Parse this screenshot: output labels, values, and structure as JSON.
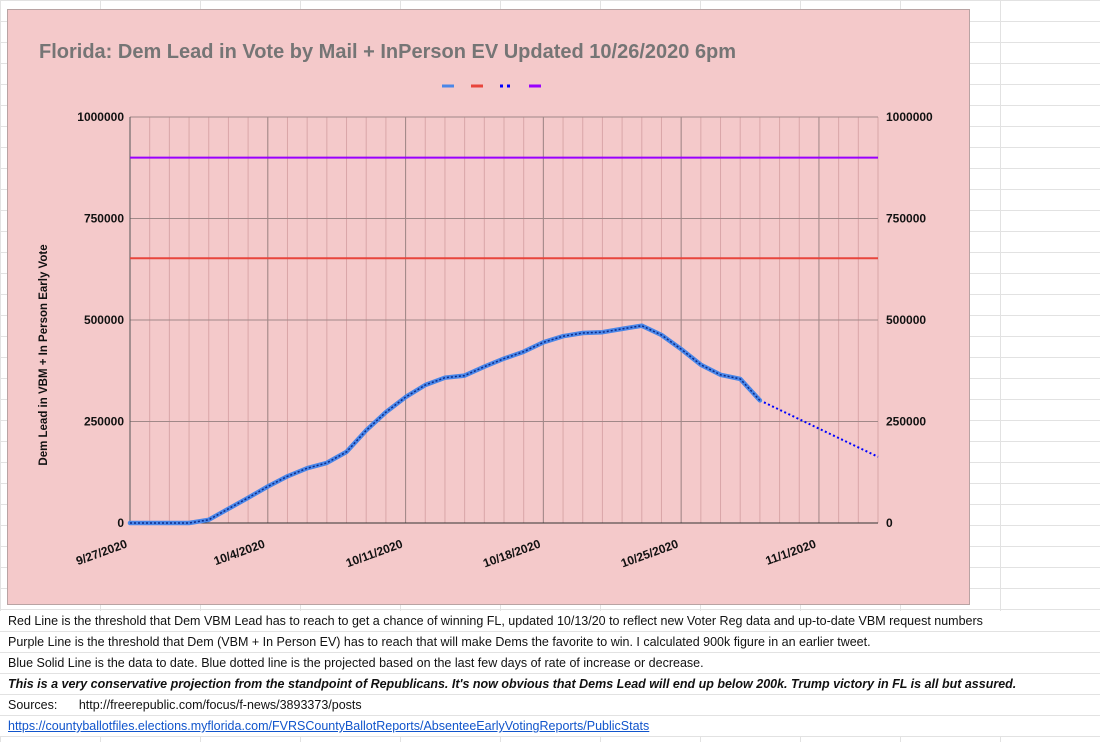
{
  "chart_data": {
    "type": "line",
    "title": "Florida: Dem Lead in Vote by Mail + InPerson EV Updated 10/26/2020 6pm",
    "ylabel": "Dem Lead in VBM + In Person Early Vote",
    "xlabel": "",
    "ylim": [
      0,
      1000000
    ],
    "y_ticks": [
      "1000000",
      "750000",
      "500000",
      "250000",
      "0"
    ],
    "y_tick_values": [
      1000000,
      750000,
      500000,
      250000,
      0
    ],
    "x_date_range": [
      "9/27/2020",
      "11/4/2020"
    ],
    "x_tick_labels": [
      "9/27/2020",
      "10/4/2020",
      "10/11/2020",
      "10/18/2020",
      "10/25/2020",
      "11/1/2020"
    ],
    "x_tick_dates": [
      "9/27/2020",
      "10/4/2020",
      "10/11/2020",
      "10/18/2020",
      "10/25/2020",
      "11/1/2020"
    ],
    "grid": true,
    "legend": "top",
    "series": [
      {
        "id": "blue_solid",
        "color": "#4a86e8",
        "style": "solid",
        "points": [
          [
            "9/27/2020",
            0
          ],
          [
            "9/28/2020",
            0
          ],
          [
            "9/29/2020",
            0
          ],
          [
            "9/30/2020",
            0
          ],
          [
            "10/1/2020",
            8000
          ],
          [
            "10/2/2020",
            35000
          ],
          [
            "10/3/2020",
            62000
          ],
          [
            "10/4/2020",
            90000
          ],
          [
            "10/5/2020",
            115000
          ],
          [
            "10/6/2020",
            135000
          ],
          [
            "10/7/2020",
            148000
          ],
          [
            "10/8/2020",
            175000
          ],
          [
            "10/9/2020",
            228000
          ],
          [
            "10/10/2020",
            273000
          ],
          [
            "10/11/2020",
            310000
          ],
          [
            "10/12/2020",
            340000
          ],
          [
            "10/13/2020",
            358000
          ],
          [
            "10/14/2020",
            363000
          ],
          [
            "10/15/2020",
            385000
          ],
          [
            "10/16/2020",
            405000
          ],
          [
            "10/17/2020",
            422000
          ],
          [
            "10/18/2020",
            445000
          ],
          [
            "10/19/2020",
            460000
          ],
          [
            "10/20/2020",
            468000
          ],
          [
            "10/21/2020",
            470000
          ],
          [
            "10/22/2020",
            478000
          ],
          [
            "10/23/2020",
            486000
          ],
          [
            "10/24/2020",
            463000
          ],
          [
            "10/25/2020",
            428000
          ],
          [
            "10/26/2020",
            390000
          ],
          [
            "10/27/2020",
            365000
          ],
          [
            "10/28/2020",
            355000
          ],
          [
            "10/29/2020",
            302000
          ]
        ]
      },
      {
        "id": "red",
        "color": "#e8453c",
        "style": "solid",
        "points": [
          [
            "9/27/2020",
            652000
          ],
          [
            "11/4/2020",
            652000
          ]
        ]
      },
      {
        "id": "blue_dotted",
        "color": "#0000ff",
        "style": "dotted",
        "points": [
          [
            "10/29/2020",
            302000
          ],
          [
            "11/4/2020",
            163000
          ]
        ]
      },
      {
        "id": "purple",
        "color": "#9900ff",
        "style": "solid",
        "points": [
          [
            "9/27/2020",
            900000
          ],
          [
            "11/4/2020",
            900000
          ]
        ]
      }
    ]
  },
  "notes": {
    "red": "Red Line is the threshold that Dem VBM Lead has to reach to get a chance of winning FL, updated 10/13/20 to reflect new Voter Reg data and up-to-date VBM request numbers",
    "purple": "Purple Line is the threshold that Dem (VBM + In Person EV) has to reach that will make Dems the favorite to win. I calculated 900k figure in an earlier tweet.",
    "blue": "Blue Solid Line is the data to date. Blue dotted line is the projected based on the last few days of rate of increase or decrease.",
    "bold": "This is a very conservative projection from the standpoint of Republicans.  It's now obvious that Dems Lead will end up below 200k.  Trump victory in FL is all but assured.",
    "sources_label": "Sources:",
    "sources_url": "http://freerepublic.com/focus/f-news/3893373/posts",
    "link": "https://countyballotfiles.elections.myflorida.com/FVRSCountyBallotReports/AbsenteeEarlyVotingReports/PublicStats"
  }
}
